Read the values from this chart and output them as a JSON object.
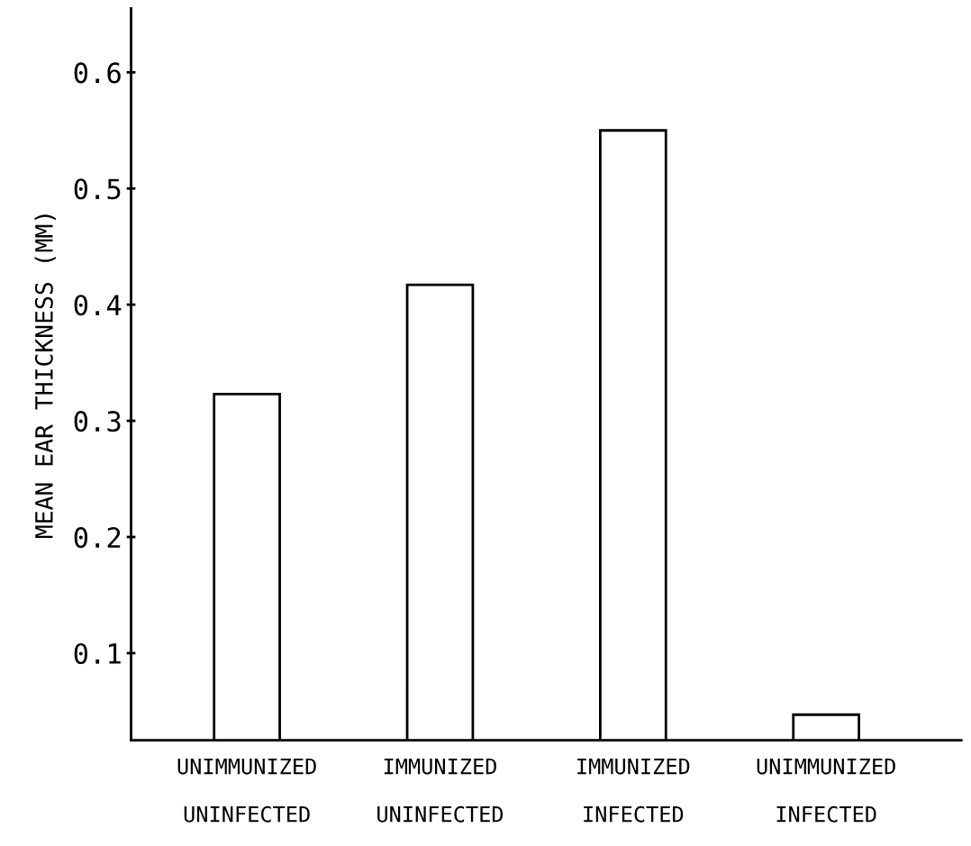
{
  "chart_data": {
    "type": "bar",
    "ylabel": "MEAN EAR THICKNESS (MM)",
    "categories": [
      "UNIMMUNIZED\n\nUNINFECTED",
      "IMMUNIZED\n\nUNINFECTED",
      "IMMUNIZED\n\nINFECTED",
      "UNIMMUNIZED\n\nINFECTED"
    ],
    "values": [
      0.323,
      0.417,
      0.55,
      0.047
    ],
    "color": "#ffffff",
    "ylim": [
      0.025,
      0.655
    ],
    "yticks": [
      0.1,
      0.2,
      0.3,
      0.4,
      0.5,
      0.6
    ],
    "grid": false
  }
}
